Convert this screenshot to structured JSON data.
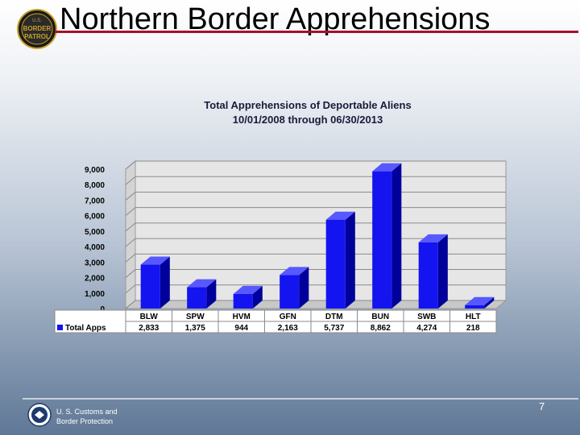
{
  "slide": {
    "title": "Northern Border Apprehensions",
    "logo_text": [
      "U.S.",
      "BORDER",
      "PATROL"
    ],
    "footer_lines": [
      "U. S. Customs and",
      "Border Protection"
    ],
    "page_number": "7"
  },
  "colors": {
    "bar_front": "#1414f0",
    "bar_side": "#00009a",
    "bar_top": "#5858ff",
    "title_rule": "#a8102a"
  },
  "chart_data": {
    "type": "bar",
    "title": [
      "Total Apprehensions of Deportable Aliens",
      "10/01/2008 through 06/30/2013"
    ],
    "categories": [
      "BLW",
      "SPW",
      "HVM",
      "GFN",
      "DTM",
      "BUN",
      "SWB",
      "HLT"
    ],
    "series": [
      {
        "name": "Total Apps",
        "values": [
          2833,
          1375,
          944,
          2163,
          5737,
          8862,
          4274,
          218
        ],
        "labels": [
          "2,833",
          "1,375",
          "944",
          "2,163",
          "5,737",
          "8,862",
          "4,274",
          "218"
        ]
      }
    ],
    "ylim": [
      0,
      9000
    ],
    "yticks": [
      0,
      1000,
      2000,
      3000,
      4000,
      5000,
      6000,
      7000,
      8000,
      9000
    ],
    "ytick_labels": [
      "0",
      "1,000",
      "2,000",
      "3,000",
      "4,000",
      "5,000",
      "6,000",
      "7,000",
      "8,000",
      "9,000"
    ],
    "grid": true,
    "legend": "data-table-left"
  }
}
